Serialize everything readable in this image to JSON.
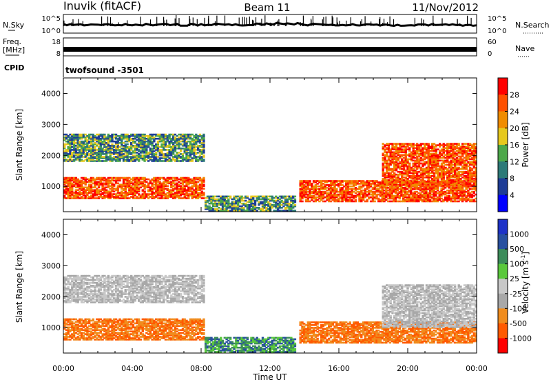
{
  "header": {
    "station": "Inuvik (fitACF)",
    "beam": "Beam 11",
    "date": "11/Nov/2012"
  },
  "panels": {
    "noise_left": "N.Sky",
    "noise_right": "N.Search",
    "noise_ticks_left": [
      "10^5",
      "10^0"
    ],
    "noise_ticks_right": [
      "10^5",
      "10^0"
    ],
    "freq_left_1": "Freq.",
    "freq_left_2": "[MHz]",
    "freq_ticks_left": [
      "18",
      "8"
    ],
    "freq_ticks_right": [
      "60",
      "0"
    ],
    "nave_right": "Nave",
    "cpid_label": "CPID",
    "cpid_value": "twofsound -3501",
    "time_label": "Time UT"
  },
  "colors": {
    "power": [
      "#0000ff",
      "#1e3c96",
      "#2d7a78",
      "#4ca84a",
      "#e6c81e",
      "#f08c00",
      "#ff5000",
      "#ff0000"
    ],
    "velocity": [
      "#ff0000",
      "#ff5a00",
      "#f08c1e",
      "#a8a8a8",
      "#c8c8c8",
      "#5ac83c",
      "#3c8c5a",
      "#2850a0",
      "#1e32c8"
    ]
  },
  "chart_data": [
    {
      "type": "heatmap",
      "name": "power",
      "ylabel": "Slant Range [km]",
      "xlabel": "Time UT",
      "x_ticks": [
        "00:00",
        "04:00",
        "08:00",
        "12:00",
        "16:00",
        "20:00",
        "00:00"
      ],
      "y_ticks": [
        1000,
        2000,
        3000,
        4000
      ],
      "ylim": [
        180,
        4500
      ],
      "xlim_hours": [
        0,
        24
      ],
      "colorbar_label": "Power [dB]",
      "colorbar_ticks": [
        4,
        8,
        12,
        16,
        20,
        24,
        28
      ],
      "regions": [
        {
          "t0": 0,
          "t1": 8.2,
          "r0": 600,
          "r1": 1300,
          "level": "high"
        },
        {
          "t0": 0,
          "t1": 8.2,
          "r0": 1800,
          "r1": 2700,
          "level": "mid"
        },
        {
          "t0": 8.2,
          "t1": 13.5,
          "r0": 200,
          "r1": 700,
          "level": "mid"
        },
        {
          "t0": 13.7,
          "t1": 24,
          "r0": 500,
          "r1": 1200,
          "level": "high"
        },
        {
          "t0": 18.5,
          "t1": 24,
          "r0": 1000,
          "r1": 2400,
          "level": "high"
        }
      ]
    },
    {
      "type": "heatmap",
      "name": "velocity",
      "ylabel": "Slant Range [km]",
      "xlabel": "Time UT",
      "x_ticks": [
        "00:00",
        "04:00",
        "08:00",
        "12:00",
        "16:00",
        "20:00",
        "00:00"
      ],
      "y_ticks": [
        1000,
        2000,
        3000,
        4000
      ],
      "ylim": [
        180,
        4500
      ],
      "xlim_hours": [
        0,
        24
      ],
      "colorbar_label": "Velocity [m s",
      "colorbar_exponent": "-1",
      "colorbar_ticks": [
        "1000",
        "500",
        "100",
        "25",
        "-25",
        "-100",
        "-500",
        "-1000"
      ],
      "regions": [
        {
          "t0": 0,
          "t1": 8.2,
          "r0": 600,
          "r1": 1300,
          "level": "neg"
        },
        {
          "t0": 0,
          "t1": 8.2,
          "r0": 1800,
          "r1": 2700,
          "level": "ground"
        },
        {
          "t0": 8.2,
          "t1": 13.5,
          "r0": 200,
          "r1": 700,
          "level": "pos"
        },
        {
          "t0": 13.7,
          "t1": 24,
          "r0": 500,
          "r1": 1200,
          "level": "neg"
        },
        {
          "t0": 18.5,
          "t1": 24,
          "r0": 1000,
          "r1": 2400,
          "level": "ground"
        }
      ]
    }
  ]
}
